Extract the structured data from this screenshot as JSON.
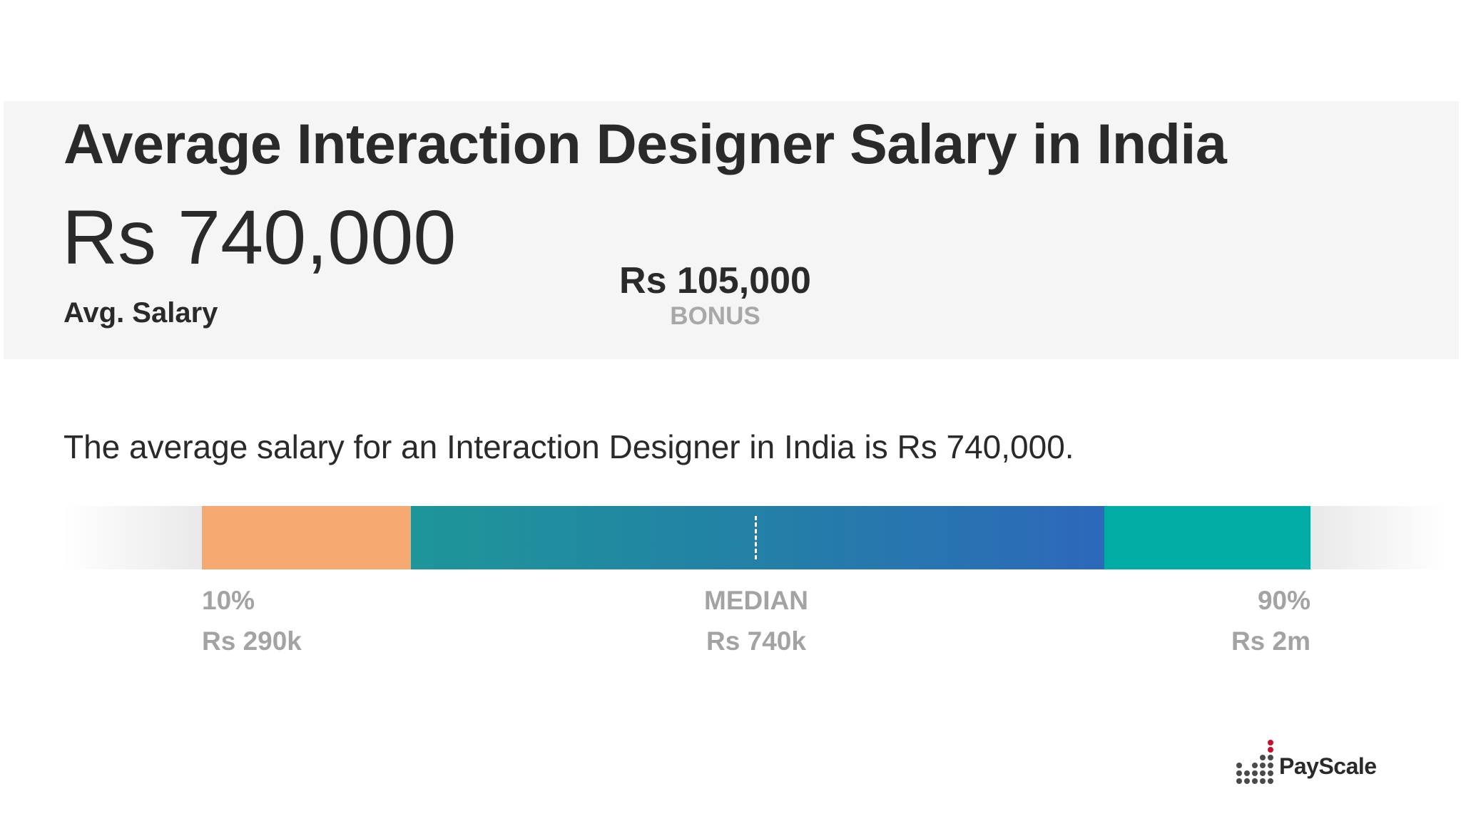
{
  "header": {
    "title": "Average Interaction Designer Salary in India",
    "avg_salary_value": "Rs 740,000",
    "avg_salary_label": "Avg. Salary",
    "bonus_value": "Rs 105,000",
    "bonus_label": "BONUS"
  },
  "summary": "The average salary for an Interaction Designer in India is Rs 740,000.",
  "distribution": {
    "low_label": "10%",
    "low_value": "Rs 290k",
    "median_label": "MEDIAN",
    "median_value": "Rs 740k",
    "high_label": "90%",
    "high_value": "Rs 2m",
    "colors": {
      "low": "#f5a971",
      "mid_start": "#1e9699",
      "mid_end": "#2d68bb",
      "high": "#00aca4"
    }
  },
  "brand": {
    "logo_text": "PayScale",
    "logo_icon": "payscale-dots-icon",
    "accent": "#c8102e"
  }
}
